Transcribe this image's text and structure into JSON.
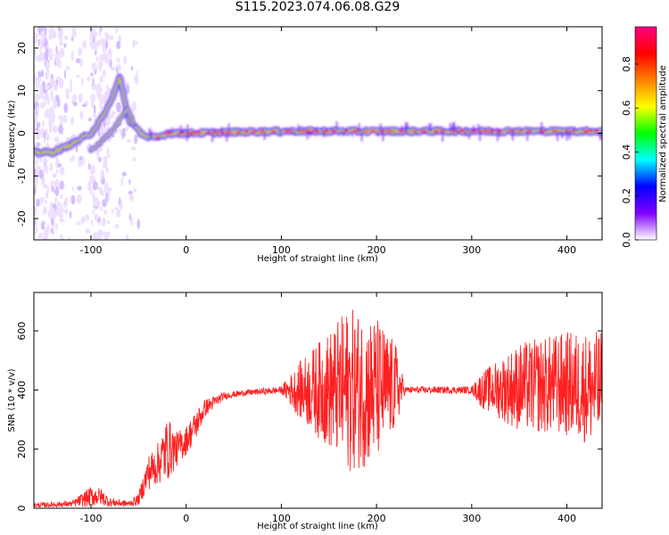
{
  "figure": {
    "title": "S115.2023.074.06.08.G29"
  },
  "chart_data": [
    {
      "type": "heatmap",
      "xlabel": "Height of straight line (km)",
      "ylabel": "Frequency (Hz)",
      "xlim": [
        -160,
        437
      ],
      "ylim": [
        -25,
        25
      ],
      "xticks": [
        -100,
        0,
        100,
        200,
        300,
        400
      ],
      "yticks": [
        -20,
        -10,
        0,
        10,
        20
      ],
      "colorbar": {
        "label": "Normalized spectral amplitude",
        "range": [
          0,
          0.97
        ],
        "ticks": [
          0.0,
          0.2,
          0.4,
          0.6,
          0.8
        ],
        "tick_labels": [
          "0.0",
          "0.2",
          "0.4",
          "0.6",
          "0.8"
        ],
        "colormap": [
          "#ffffff",
          "#8000ff",
          "#0000ff",
          "#00ffff",
          "#00ff00",
          "#ffff00",
          "#ff8000",
          "#ff0000",
          "#ff0080"
        ]
      },
      "ridge": [
        {
          "x": -160,
          "f": -4.5
        },
        {
          "x": -140,
          "f": -4.5
        },
        {
          "x": -120,
          "f": -2.5
        },
        {
          "x": -100,
          "f": 0
        },
        {
          "x": -90,
          "f": 3
        },
        {
          "x": -80,
          "f": 7
        },
        {
          "x": -70,
          "f": 13
        },
        {
          "x": -60,
          "f": 3
        },
        {
          "x": -50,
          "f": 0.5
        },
        {
          "x": -40,
          "f": -1
        },
        {
          "x": -30,
          "f": -1
        },
        {
          "x": -20,
          "f": 0
        },
        {
          "x": 0,
          "f": 0
        },
        {
          "x": 100,
          "f": 0.5
        },
        {
          "x": 200,
          "f": 0.5
        },
        {
          "x": 300,
          "f": 0.5
        },
        {
          "x": 437,
          "f": 0.5
        }
      ],
      "branch": [
        {
          "x": -100,
          "f": -4
        },
        {
          "x": -90,
          "f": -2
        },
        {
          "x": -80,
          "f": 0
        },
        {
          "x": -70,
          "f": 3
        },
        {
          "x": -62,
          "f": 6
        },
        {
          "x": -55,
          "f": 2
        }
      ]
    },
    {
      "type": "line",
      "xlabel": "Height of straight line (km)",
      "ylabel": "SNR (10 * v/v)",
      "xlim": [
        -160,
        437
      ],
      "ylim": [
        0,
        730
      ],
      "xticks": [
        -100,
        0,
        100,
        200,
        300,
        400
      ],
      "yticks": [
        0,
        200,
        400,
        600
      ],
      "color": "#ff2020",
      "series": [
        {
          "envelope": [
            {
              "x": -160,
              "mean": 10,
              "amp": 8
            },
            {
              "x": -120,
              "mean": 15,
              "amp": 10
            },
            {
              "x": -100,
              "mean": 40,
              "amp": 35
            },
            {
              "x": -90,
              "mean": 40,
              "amp": 30
            },
            {
              "x": -80,
              "mean": 20,
              "amp": 15
            },
            {
              "x": -60,
              "mean": 15,
              "amp": 10
            },
            {
              "x": -50,
              "mean": 30,
              "amp": 20
            },
            {
              "x": -40,
              "mean": 120,
              "amp": 60
            },
            {
              "x": -30,
              "mean": 150,
              "amp": 70
            },
            {
              "x": -20,
              "mean": 200,
              "amp": 110
            },
            {
              "x": -10,
              "mean": 200,
              "amp": 60
            },
            {
              "x": 0,
              "mean": 230,
              "amp": 50
            },
            {
              "x": 10,
              "mean": 280,
              "amp": 50
            },
            {
              "x": 20,
              "mean": 340,
              "amp": 30
            },
            {
              "x": 40,
              "mean": 380,
              "amp": 12
            },
            {
              "x": 60,
              "mean": 390,
              "amp": 10
            },
            {
              "x": 100,
              "mean": 400,
              "amp": 12
            },
            {
              "x": 120,
              "mean": 400,
              "amp": 100
            },
            {
              "x": 150,
              "mean": 400,
              "amp": 200
            },
            {
              "x": 170,
              "mean": 400,
              "amp": 280
            },
            {
              "x": 200,
              "mean": 400,
              "amp": 250
            },
            {
              "x": 220,
              "mean": 410,
              "amp": 150
            },
            {
              "x": 230,
              "mean": 400,
              "amp": 12
            },
            {
              "x": 300,
              "mean": 400,
              "amp": 12
            },
            {
              "x": 310,
              "mean": 400,
              "amp": 60
            },
            {
              "x": 350,
              "mean": 410,
              "amp": 150
            },
            {
              "x": 400,
              "mean": 420,
              "amp": 180
            },
            {
              "x": 437,
              "mean": 400,
              "amp": 200
            }
          ]
        }
      ]
    }
  ]
}
